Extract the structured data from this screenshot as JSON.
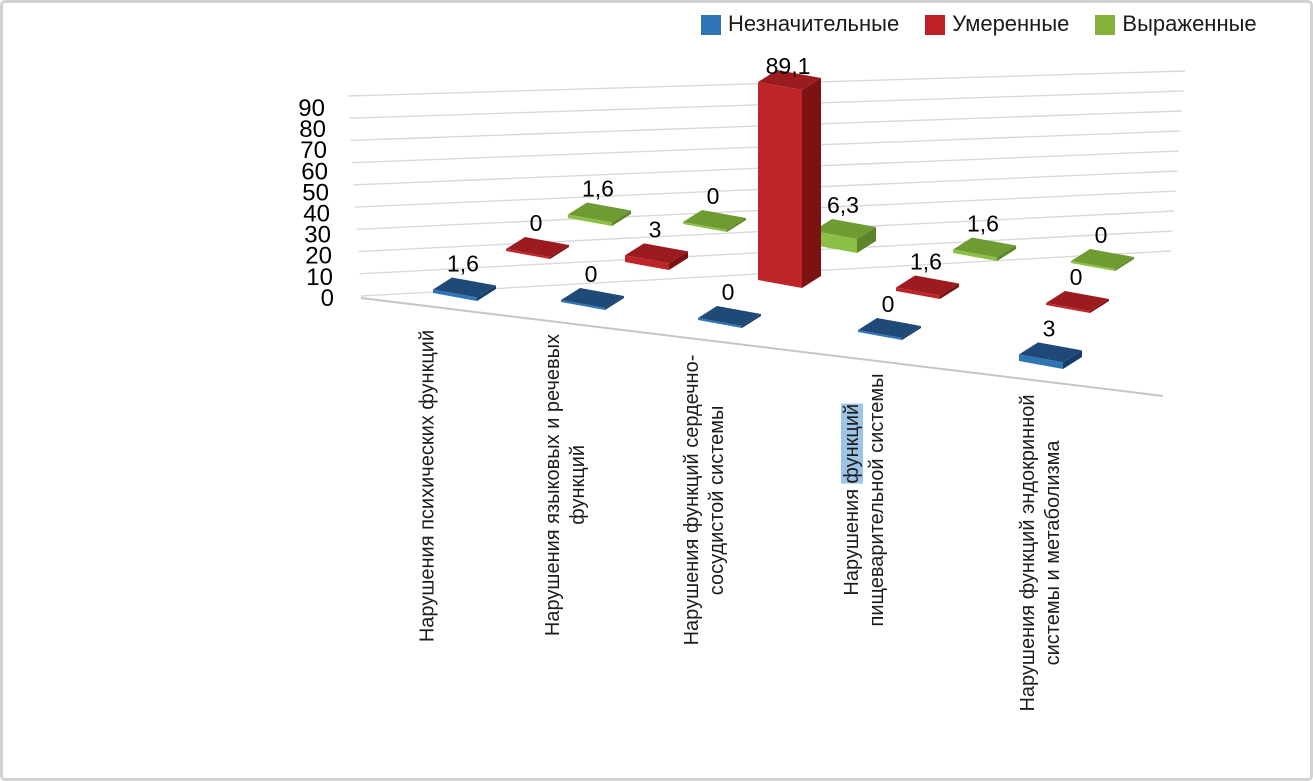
{
  "frame": {
    "background": "#ffffff",
    "border_color": "#d2d2d2"
  },
  "legend": {
    "position": "top",
    "items": [
      {
        "label": "Незначительные",
        "color": "#2E75B6"
      },
      {
        "label": "Умеренные",
        "color": "#BE2026"
      },
      {
        "label": "Выраженные",
        "color": "#84B13B"
      }
    ]
  },
  "chart_data": {
    "type": "bar",
    "projection": "3d",
    "title": "",
    "xlabel": "",
    "ylabel": "",
    "ylim": [
      0,
      90
    ],
    "yticks": [
      0,
      10,
      20,
      30,
      40,
      50,
      60,
      70,
      80,
      90
    ],
    "grid": true,
    "legend_position": "top",
    "categories": [
      "Нарушения психических функций",
      "Нарушения языковых и речевых функций",
      "Нарушения функций сердечно-сосудистой системы",
      "Нарушения функций пищеварительной системы",
      "Нарушения функций эндокринной системы и метаболизма"
    ],
    "category_label_lines": [
      [
        "Нарушения психических функций"
      ],
      [
        "Нарушения языковых и речевых",
        "функций"
      ],
      [
        "Нарушения функций сердечно-",
        "сосудистой системы"
      ],
      [
        "Нарушения функций",
        "пищеварительной системы"
      ],
      [
        "Нарушения функций эндокринной",
        "системы и метаболизма"
      ]
    ],
    "series": [
      {
        "name": "Незначительные",
        "values": [
          1.6,
          0,
          0,
          0,
          3
        ],
        "data_labels": [
          "1,6",
          "0",
          "0",
          "0",
          "3"
        ],
        "color_front": "#2E75B6",
        "color_top": "#1F4977",
        "color_side": "#193D66"
      },
      {
        "name": "Умеренные",
        "values": [
          0,
          3,
          89.1,
          1.6,
          0
        ],
        "data_labels": [
          "0",
          "3",
          "89,1",
          "1,6",
          "0"
        ],
        "color_front": "#BE2529",
        "color_top": "#9C1B1F",
        "color_side": "#7D1215"
      },
      {
        "name": "Выраженные",
        "values": [
          1.6,
          0,
          6.3,
          1.6,
          0
        ],
        "data_labels": [
          "1,6",
          "0",
          "6,3",
          "1,6",
          "0"
        ],
        "color_front": "#8CBF45",
        "color_top": "#6E9C33",
        "color_side": "#5E8429"
      }
    ],
    "text_selection_highlight": {
      "category_index": 3,
      "word": "функций",
      "color": "#9DC3E6"
    },
    "gridline_color": "#D9D9D9",
    "axis_line_color": "#C6C6C6",
    "tick_label_color": "#000000",
    "data_label_color": "#000000"
  }
}
